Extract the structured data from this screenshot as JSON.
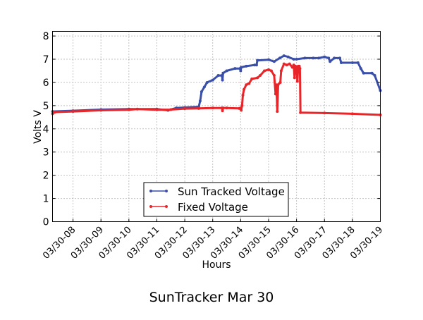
{
  "chart_data": {
    "type": "line",
    "title": "SunTracker Mar 30",
    "xlabel": "Hours",
    "ylabel": "Volts V",
    "xlim": [
      "03/30-07:16",
      "03/30-19:00"
    ],
    "ylim": [
      0,
      8.2
    ],
    "grid": true,
    "legend_position": "bottom-center",
    "x_ticks": [
      "03/30-08",
      "03/30-09",
      "03/30-10",
      "03/30-11",
      "03/30-12",
      "03/30-13",
      "03/30-14",
      "03/30-15",
      "03/30-16",
      "03/30-17",
      "03/30-18",
      "03/30-19"
    ],
    "y_ticks": [
      "0",
      "1",
      "2",
      "3",
      "4",
      "5",
      "6",
      "7",
      "8"
    ],
    "series": [
      {
        "name": "Sun Tracked Voltage",
        "color": "#3a4fa8",
        "x_hours": [
          7.27,
          8,
          9,
          10,
          11,
          11.4,
          11.7,
          12,
          12.5,
          12.55,
          12.6,
          12.7,
          12.8,
          13.0,
          13.2,
          13.33,
          13.35,
          13.37,
          13.5,
          13.8,
          13.98,
          14.0,
          14.02,
          14.2,
          14.5,
          14.57,
          14.6,
          15.0,
          15.2,
          15.4,
          15.55,
          15.7,
          15.9,
          16.0,
          16.3,
          16.6,
          16.8,
          17.0,
          17.15,
          17.2,
          17.35,
          17.55,
          17.6,
          18.0,
          18.2,
          18.3,
          18.4,
          18.7,
          18.8,
          19.0
        ],
        "y": [
          4.75,
          4.78,
          4.83,
          4.85,
          4.85,
          4.8,
          4.9,
          4.92,
          4.95,
          5.2,
          5.6,
          5.8,
          6.0,
          6.1,
          6.3,
          6.3,
          6.1,
          6.4,
          6.5,
          6.6,
          6.6,
          6.5,
          6.65,
          6.7,
          6.75,
          6.75,
          6.95,
          6.98,
          6.9,
          7.05,
          7.15,
          7.1,
          7.0,
          7.0,
          7.05,
          7.05,
          7.05,
          7.1,
          7.05,
          6.9,
          7.05,
          7.05,
          6.85,
          6.85,
          6.85,
          6.6,
          6.4,
          6.4,
          6.3,
          5.65
        ]
      },
      {
        "name": "Fixed Voltage",
        "color": "#e8262a",
        "x_hours": [
          7.27,
          7.35,
          8,
          9,
          10,
          10.3,
          11,
          11.5,
          12,
          12.5,
          13,
          13.33,
          13.35,
          13.37,
          13.5,
          13.95,
          14.0,
          14.02,
          14.05,
          14.08,
          14.12,
          14.2,
          14.3,
          14.4,
          14.6,
          14.7,
          14.85,
          15.0,
          15.1,
          15.2,
          15.25,
          15.28,
          15.31,
          15.34,
          15.42,
          15.45,
          15.55,
          15.65,
          15.75,
          15.85,
          15.9,
          15.93,
          15.96,
          16.0,
          16.03,
          16.06,
          16.1,
          16.12,
          16.14,
          17.0,
          18.0,
          19.0
        ],
        "y": [
          4.65,
          4.72,
          4.75,
          4.8,
          4.82,
          4.85,
          4.82,
          4.83,
          4.87,
          4.88,
          4.9,
          4.9,
          4.78,
          4.9,
          4.9,
          4.88,
          4.9,
          4.8,
          5.0,
          5.45,
          5.7,
          5.9,
          5.95,
          6.15,
          6.2,
          6.3,
          6.5,
          6.55,
          6.5,
          6.3,
          5.5,
          5.9,
          4.75,
          5.9,
          6.0,
          6.5,
          6.8,
          6.75,
          6.8,
          6.65,
          6.75,
          6.2,
          6.7,
          6.65,
          6.05,
          6.7,
          6.7,
          6.6,
          4.7,
          4.68,
          4.65,
          4.6
        ]
      }
    ]
  }
}
